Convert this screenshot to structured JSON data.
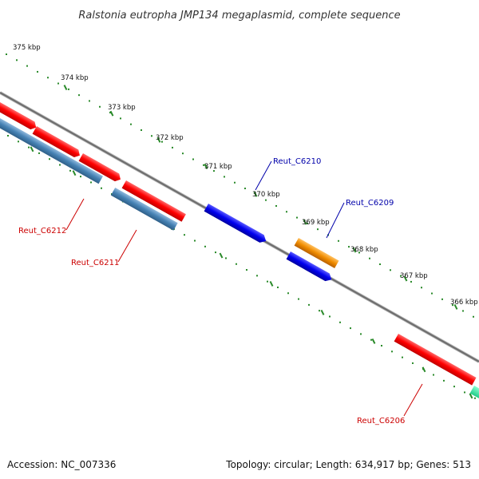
{
  "title": "Ralstonia eutropha JMP134 megaplasmid, complete sequence",
  "footer": {
    "accession": "Accession: NC_007336",
    "summary": "Topology: circular; Length: 634,917 bp; Genes: 513"
  },
  "ruler_labels": [
    "375 kbp",
    "374 kbp",
    "373 kbp",
    "372 kbp",
    "371 kbp",
    "370 kbp",
    "369 kbp",
    "368 kbp",
    "367 kbp",
    "366 kbp"
  ],
  "gene_labels": {
    "reut_c6210": "Reut_C6210",
    "reut_c6209": "Reut_C6209",
    "reut_c6212": "Reut_C6212",
    "reut_c6211": "Reut_C6211",
    "reut_c6206": "Reut_C6206"
  },
  "colors": {
    "backbone": "#7a7a7a",
    "tick": "#2a8a2a",
    "forward_red": "#ff0000",
    "reverse_red": "#ff0000",
    "blue": "#0000ee",
    "steelblue": "#4682b4",
    "orange": "#f08c00",
    "teal": "#22dd99",
    "label_red": "#cc0000",
    "label_blue": "#0000aa"
  }
}
